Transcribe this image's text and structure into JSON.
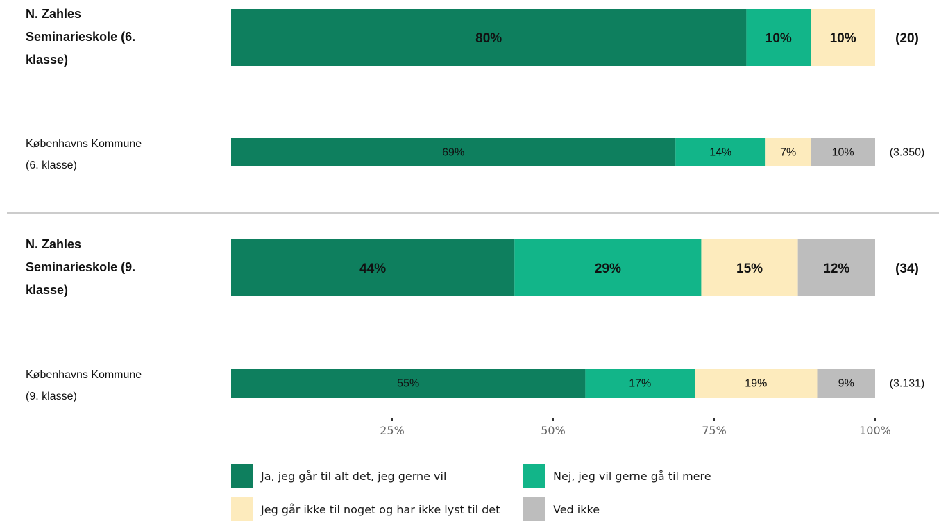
{
  "chart_data": {
    "type": "bar",
    "orientation": "horizontal-stacked",
    "xlim": [
      0,
      100
    ],
    "x_ticks": [
      "25%",
      "50%",
      "75%",
      "100%"
    ],
    "x_tick_values": [
      25,
      50,
      75,
      100
    ],
    "categories": [
      "N. Zahles Seminarieskole (6. klasse)",
      "Københavns Kommune (6. klasse)",
      "N. Zahles Seminarieskole (9. klasse)",
      "Københavns Kommune (9. klasse)"
    ],
    "category_lines": [
      [
        "N. Zahles",
        "Seminarieskole (6.",
        "klasse)"
      ],
      [
        "Københavns Kommune",
        "(6. klasse)"
      ],
      [
        "N. Zahles",
        "Seminarieskole (9.",
        "klasse)"
      ],
      [
        "Københavns Kommune",
        "(9. klasse)"
      ]
    ],
    "emphasis": [
      true,
      false,
      true,
      false
    ],
    "counts": [
      "(20)",
      "(3.350)",
      "(34)",
      "(3.131)"
    ],
    "series": [
      {
        "name": "Ja, jeg går til alt det, jeg gerne vil",
        "color": "#0e7f5e",
        "values": [
          80,
          69,
          44,
          55
        ],
        "labels": [
          "80%",
          "69%",
          "44%",
          "55%"
        ]
      },
      {
        "name": "Nej, jeg vil gerne gå til mere",
        "color": "#12b589",
        "values": [
          10,
          14,
          29,
          17
        ],
        "labels": [
          "10%",
          "14%",
          "29%",
          "17%"
        ]
      },
      {
        "name": "Jeg går ikke til noget og har ikke lyst til det",
        "color": "#fdebbd",
        "values": [
          10,
          7,
          15,
          19
        ],
        "labels": [
          "10%",
          "7%",
          "15%",
          "19%"
        ]
      },
      {
        "name": "Ved ikke",
        "color": "#bdbdbd",
        "values": [
          0,
          10,
          12,
          9
        ],
        "labels": [
          "",
          "10%",
          "12%",
          "9%"
        ]
      }
    ],
    "separator_color": "#cccccc",
    "legend_position": "bottom"
  }
}
